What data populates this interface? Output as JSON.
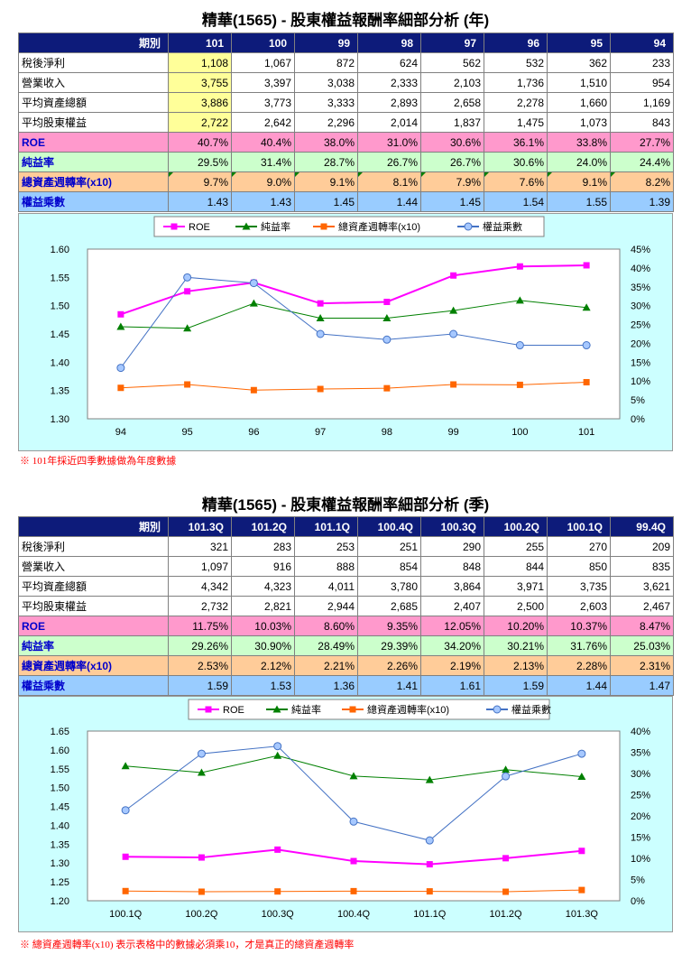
{
  "annual": {
    "title": "精華(1565) -  股東權益報酬率細部分析 (年)",
    "header_label": "期別",
    "periods": [
      "101",
      "100",
      "99",
      "98",
      "97",
      "96",
      "95",
      "94"
    ],
    "rows": [
      {
        "label": "稅後淨利",
        "values": [
          "1,108",
          "1,067",
          "872",
          "624",
          "562",
          "532",
          "362",
          "233"
        ]
      },
      {
        "label": "營業收入",
        "values": [
          "3,755",
          "3,397",
          "3,038",
          "2,333",
          "2,103",
          "1,736",
          "1,510",
          "954"
        ]
      },
      {
        "label": "平均資產總額",
        "values": [
          "3,886",
          "3,773",
          "3,333",
          "2,893",
          "2,658",
          "2,278",
          "1,660",
          "1,169"
        ]
      },
      {
        "label": "平均股東權益",
        "values": [
          "2,722",
          "2,642",
          "2,296",
          "2,014",
          "1,837",
          "1,475",
          "1,073",
          "843"
        ]
      },
      {
        "label": "ROE",
        "values": [
          "40.7%",
          "40.4%",
          "38.0%",
          "31.0%",
          "30.6%",
          "36.1%",
          "33.8%",
          "27.7%"
        ]
      },
      {
        "label": "純益率",
        "values": [
          "29.5%",
          "31.4%",
          "28.7%",
          "26.7%",
          "26.7%",
          "30.6%",
          "24.0%",
          "24.4%"
        ]
      },
      {
        "label": "總資產週轉率(x10)",
        "values": [
          "9.7%",
          "9.0%",
          "9.1%",
          "8.1%",
          "7.9%",
          "7.6%",
          "9.1%",
          "8.2%"
        ]
      },
      {
        "label": "權益乘數",
        "values": [
          "1.43",
          "1.43",
          "1.45",
          "1.44",
          "1.45",
          "1.54",
          "1.55",
          "1.39"
        ]
      }
    ],
    "note": "※ 101年採近四季數據做為年度數據"
  },
  "quarterly": {
    "title": "精華(1565) -  股東權益報酬率細部分析 (季)",
    "header_label": "期別",
    "periods": [
      "101.3Q",
      "101.2Q",
      "101.1Q",
      "100.4Q",
      "100.3Q",
      "100.2Q",
      "100.1Q",
      "99.4Q"
    ],
    "rows": [
      {
        "label": "稅後淨利",
        "values": [
          "321",
          "283",
          "253",
          "251",
          "290",
          "255",
          "270",
          "209"
        ]
      },
      {
        "label": "營業收入",
        "values": [
          "1,097",
          "916",
          "888",
          "854",
          "848",
          "844",
          "850",
          "835"
        ]
      },
      {
        "label": "平均資產總額",
        "values": [
          "4,342",
          "4,323",
          "4,011",
          "3,780",
          "3,864",
          "3,971",
          "3,735",
          "3,621"
        ]
      },
      {
        "label": "平均股東權益",
        "values": [
          "2,732",
          "2,821",
          "2,944",
          "2,685",
          "2,407",
          "2,500",
          "2,603",
          "2,467"
        ]
      },
      {
        "label": "ROE",
        "values": [
          "11.75%",
          "10.03%",
          "8.60%",
          "9.35%",
          "12.05%",
          "10.20%",
          "10.37%",
          "8.47%"
        ]
      },
      {
        "label": "純益率",
        "values": [
          "29.26%",
          "30.90%",
          "28.49%",
          "29.39%",
          "34.20%",
          "30.21%",
          "31.76%",
          "25.03%"
        ]
      },
      {
        "label": "總資產週轉率(x10)",
        "values": [
          "2.53%",
          "2.12%",
          "2.21%",
          "2.26%",
          "2.19%",
          "2.13%",
          "2.28%",
          "2.31%"
        ]
      },
      {
        "label": "權益乘數",
        "values": [
          "1.59",
          "1.53",
          "1.36",
          "1.41",
          "1.61",
          "1.59",
          "1.44",
          "1.47"
        ]
      }
    ],
    "note": "※ 總資產週轉率(x10) 表示表格中的數據必須乘10，才是真正的總資產週轉率"
  },
  "chart_data": [
    {
      "type": "line",
      "categories": [
        "94",
        "95",
        "96",
        "97",
        "98",
        "99",
        "100",
        "101"
      ],
      "ylim_left": [
        1.3,
        1.6
      ],
      "ylim_right": [
        0,
        45
      ],
      "left_ticks": [
        "1.30",
        "1.35",
        "1.40",
        "1.45",
        "1.50",
        "1.55",
        "1.60"
      ],
      "right_ticks": [
        "0%",
        "5%",
        "10%",
        "15%",
        "20%",
        "25%",
        "30%",
        "35%",
        "40%",
        "45%"
      ],
      "legend_position": "top",
      "series": [
        {
          "name": "ROE",
          "axis": "right",
          "color": "#ff00ff",
          "marker": "square",
          "values": [
            27.7,
            33.8,
            36.1,
            30.6,
            31.0,
            38.0,
            40.4,
            40.7
          ]
        },
        {
          "name": "純益率",
          "axis": "right",
          "color": "#008000",
          "marker": "triangle",
          "values": [
            24.4,
            24.0,
            30.6,
            26.7,
            26.7,
            28.7,
            31.4,
            29.5
          ]
        },
        {
          "name": "總資產週轉率(x10)",
          "axis": "right",
          "color": "#ff6600",
          "marker": "square",
          "values": [
            8.2,
            9.1,
            7.6,
            7.9,
            8.1,
            9.1,
            9.0,
            9.7
          ]
        },
        {
          "name": "權益乘數",
          "axis": "left",
          "color": "#4472c4",
          "marker": "circle",
          "values": [
            1.39,
            1.55,
            1.54,
            1.45,
            1.44,
            1.45,
            1.43,
            1.43
          ]
        }
      ]
    },
    {
      "type": "line",
      "categories": [
        "100.1Q",
        "100.2Q",
        "100.3Q",
        "100.4Q",
        "101.1Q",
        "101.2Q",
        "101.3Q"
      ],
      "ylim_left": [
        1.2,
        1.65
      ],
      "ylim_right": [
        0,
        40
      ],
      "left_ticks": [
        "1.20",
        "1.25",
        "1.30",
        "1.35",
        "1.40",
        "1.45",
        "1.50",
        "1.55",
        "1.60",
        "1.65"
      ],
      "right_ticks": [
        "0%",
        "5%",
        "10%",
        "15%",
        "20%",
        "25%",
        "30%",
        "35%",
        "40%"
      ],
      "legend_position": "top",
      "series": [
        {
          "name": "ROE",
          "axis": "right",
          "color": "#ff00ff",
          "marker": "square",
          "values": [
            10.37,
            10.2,
            12.05,
            9.35,
            8.6,
            10.03,
            11.75
          ]
        },
        {
          "name": "純益率",
          "axis": "right",
          "color": "#008000",
          "marker": "triangle",
          "values": [
            31.76,
            30.21,
            34.2,
            29.39,
            28.49,
            30.9,
            29.26
          ]
        },
        {
          "name": "總資產週轉率(x10)",
          "axis": "right",
          "color": "#ff6600",
          "marker": "square",
          "values": [
            2.28,
            2.13,
            2.19,
            2.26,
            2.21,
            2.12,
            2.53
          ]
        },
        {
          "name": "權益乘數",
          "axis": "left",
          "color": "#4472c4",
          "marker": "circle",
          "values": [
            1.44,
            1.59,
            1.61,
            1.41,
            1.36,
            1.53,
            1.59
          ]
        }
      ]
    }
  ]
}
